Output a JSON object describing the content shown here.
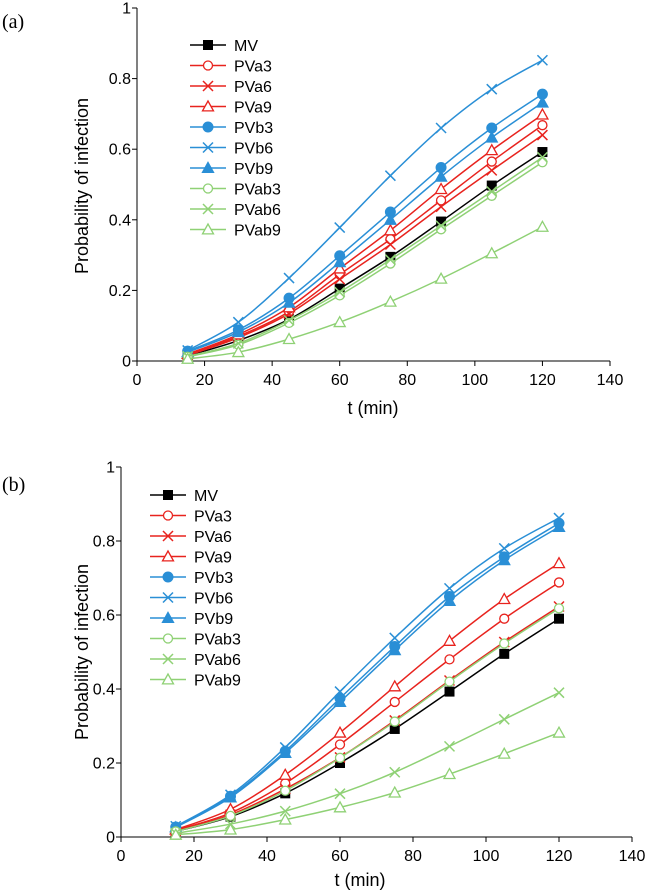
{
  "colors": {
    "MV": "#000000",
    "PVa": "#e8231e",
    "PVb": "#2a8fd6",
    "PVab": "#8fd175"
  },
  "chart_data": [
    {
      "panel_label": "(a)",
      "type": "line",
      "xlabel": "t (min)",
      "ylabel": "Probability of infection",
      "xlim": [
        0,
        140
      ],
      "ylim": [
        0,
        1
      ],
      "xticks": [
        0,
        20,
        40,
        60,
        80,
        100,
        120,
        140
      ],
      "yticks": [
        0,
        0.2,
        0.4,
        0.6,
        0.8,
        1
      ],
      "ytick_labels": [
        "0",
        "0.2",
        "0.4",
        "0.6",
        "0.8",
        "1"
      ],
      "grid": false,
      "legend_position": "upper-left",
      "x": [
        15,
        30,
        45,
        60,
        75,
        90,
        105,
        120
      ],
      "series": [
        {
          "name": "MV",
          "color_key": "MV",
          "marker": "square",
          "values": [
            0.015,
            0.058,
            0.118,
            0.205,
            0.295,
            0.395,
            0.497,
            0.592
          ]
        },
        {
          "name": "PVa3",
          "color_key": "PVa",
          "marker": "circle-open",
          "values": [
            0.018,
            0.07,
            0.14,
            0.245,
            0.345,
            0.455,
            0.565,
            0.668
          ]
        },
        {
          "name": "PVa6",
          "color_key": "PVa",
          "marker": "x",
          "values": [
            0.016,
            0.066,
            0.134,
            0.232,
            0.33,
            0.437,
            0.54,
            0.64
          ]
        },
        {
          "name": "PVa9",
          "color_key": "PVa",
          "marker": "triangle-open",
          "values": [
            0.02,
            0.075,
            0.152,
            0.262,
            0.37,
            0.487,
            0.597,
            0.698
          ]
        },
        {
          "name": "PVb3",
          "color_key": "PVb",
          "marker": "circle-filled",
          "values": [
            0.028,
            0.088,
            0.178,
            0.298,
            0.422,
            0.548,
            0.66,
            0.756
          ]
        },
        {
          "name": "PVb6",
          "color_key": "PVb",
          "marker": "x",
          "values": [
            0.03,
            0.11,
            0.235,
            0.378,
            0.525,
            0.66,
            0.77,
            0.852
          ]
        },
        {
          "name": "PVb9",
          "color_key": "PVb",
          "marker": "triangle-filled",
          "values": [
            0.025,
            0.082,
            0.165,
            0.28,
            0.4,
            0.522,
            0.633,
            0.732
          ]
        },
        {
          "name": "PVab3",
          "color_key": "PVab",
          "marker": "circle-open",
          "values": [
            0.012,
            0.046,
            0.108,
            0.186,
            0.276,
            0.373,
            0.468,
            0.563
          ]
        },
        {
          "name": "PVab6",
          "color_key": "PVab",
          "marker": "x",
          "values": [
            0.013,
            0.05,
            0.115,
            0.195,
            0.287,
            0.383,
            0.48,
            0.577
          ]
        },
        {
          "name": "PVab9",
          "color_key": "PVab",
          "marker": "triangle-open",
          "values": [
            0.006,
            0.025,
            0.062,
            0.11,
            0.168,
            0.233,
            0.305,
            0.38
          ]
        }
      ]
    },
    {
      "panel_label": "(b)",
      "type": "line",
      "xlabel": "t (min)",
      "ylabel": "Probability of infection",
      "xlim": [
        0,
        140
      ],
      "ylim": [
        0,
        1
      ],
      "xticks": [
        0,
        20,
        40,
        60,
        80,
        100,
        120,
        140
      ],
      "yticks": [
        0,
        0.2,
        0.4,
        0.6,
        0.8,
        1
      ],
      "ytick_labels": [
        "0",
        "0.2",
        "0.4",
        "0.6",
        "0.8",
        "1"
      ],
      "grid": false,
      "legend_position": "upper-left",
      "x": [
        15,
        30,
        45,
        60,
        75,
        90,
        105,
        120
      ],
      "series": [
        {
          "name": "MV",
          "color_key": "MV",
          "marker": "square",
          "values": [
            0.015,
            0.055,
            0.118,
            0.2,
            0.292,
            0.393,
            0.495,
            0.59
          ]
        },
        {
          "name": "PVa3",
          "color_key": "PVa",
          "marker": "circle-open",
          "values": [
            0.018,
            0.065,
            0.145,
            0.25,
            0.365,
            0.48,
            0.59,
            0.688
          ]
        },
        {
          "name": "PVa6",
          "color_key": "PVa",
          "marker": "x",
          "values": [
            0.016,
            0.06,
            0.13,
            0.215,
            0.315,
            0.423,
            0.527,
            0.623
          ]
        },
        {
          "name": "PVa9",
          "color_key": "PVa",
          "marker": "triangle-open",
          "values": [
            0.02,
            0.075,
            0.168,
            0.282,
            0.407,
            0.53,
            0.643,
            0.74
          ]
        },
        {
          "name": "PVb3",
          "color_key": "PVb",
          "marker": "circle-filled",
          "values": [
            0.027,
            0.11,
            0.232,
            0.375,
            0.515,
            0.65,
            0.757,
            0.848
          ]
        },
        {
          "name": "PVb6",
          "color_key": "PVb",
          "marker": "x",
          "values": [
            0.029,
            0.114,
            0.242,
            0.393,
            0.538,
            0.672,
            0.78,
            0.862
          ]
        },
        {
          "name": "PVb9",
          "color_key": "PVb",
          "marker": "triangle-filled",
          "values": [
            0.026,
            0.107,
            0.227,
            0.365,
            0.505,
            0.638,
            0.748,
            0.838
          ]
        },
        {
          "name": "PVab3",
          "color_key": "PVab",
          "marker": "circle-open",
          "values": [
            0.015,
            0.057,
            0.125,
            0.214,
            0.312,
            0.42,
            0.523,
            0.618
          ]
        },
        {
          "name": "PVab6",
          "color_key": "PVab",
          "marker": "x",
          "values": [
            0.01,
            0.035,
            0.07,
            0.117,
            0.175,
            0.245,
            0.318,
            0.39
          ]
        },
        {
          "name": "PVab9",
          "color_key": "PVab",
          "marker": "triangle-open",
          "values": [
            0.006,
            0.02,
            0.047,
            0.08,
            0.12,
            0.17,
            0.225,
            0.282
          ]
        }
      ]
    }
  ]
}
